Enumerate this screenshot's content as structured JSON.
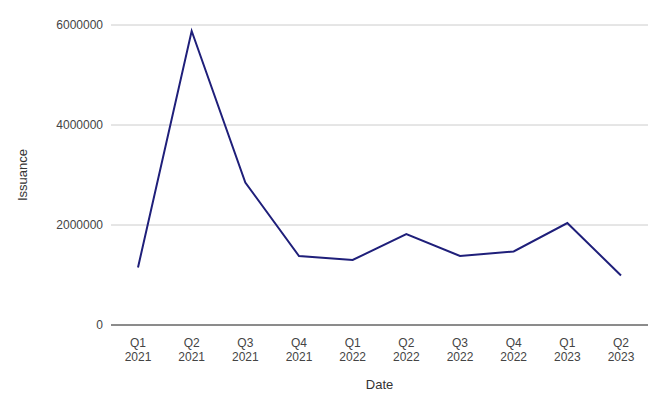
{
  "chart_data": {
    "type": "line",
    "x_label": "Date",
    "y_label": "Issuance",
    "categories": [
      "Q1 2021",
      "Q2 2021",
      "Q3 2021",
      "Q4 2021",
      "Q1 2022",
      "Q2 2022",
      "Q3 2022",
      "Q4 2022",
      "Q1 2023",
      "Q2 2023"
    ],
    "values": [
      1150000,
      5880000,
      2850000,
      1380000,
      1300000,
      1820000,
      1380000,
      1470000,
      2040000,
      990000
    ],
    "color": "#1f1f7a",
    "ylim": [
      0,
      6000000
    ],
    "yticks": [
      0,
      2000000,
      4000000,
      6000000
    ],
    "grid": true
  }
}
